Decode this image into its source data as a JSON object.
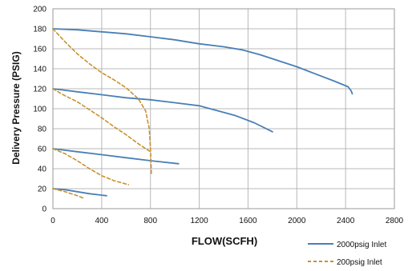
{
  "chart_data": {
    "type": "line",
    "xlabel": "FLOW(SCFH)",
    "ylabel": "Delivery Pressure (PSIG)",
    "xlim": [
      0,
      2800
    ],
    "ylim": [
      0,
      200
    ],
    "xticks": [
      "0",
      "400",
      "800",
      "1200",
      "1600",
      "2000",
      "2400",
      "2800"
    ],
    "yticks": [
      "0",
      "20",
      "40",
      "60",
      "80",
      "100",
      "120",
      "140",
      "160",
      "180",
      "200"
    ],
    "grid": true,
    "legend_position": "bottom-right",
    "series": [
      {
        "name": "2000psig Inlet",
        "color": "#4a7fb5",
        "style": "solid",
        "curves": [
          [
            [
              0,
              180
            ],
            [
              200,
              179
            ],
            [
              400,
              177
            ],
            [
              600,
              175
            ],
            [
              800,
              172
            ],
            [
              1000,
              169
            ],
            [
              1200,
              165
            ],
            [
              1400,
              162
            ],
            [
              1550,
              159
            ],
            [
              1700,
              154
            ],
            [
              1850,
              148
            ],
            [
              2000,
              142
            ],
            [
              2150,
              135
            ],
            [
              2300,
              128
            ],
            [
              2420,
              122
            ],
            [
              2445,
              118
            ],
            [
              2455,
              115
            ]
          ],
          [
            [
              0,
              120
            ],
            [
              200,
              117
            ],
            [
              400,
              114
            ],
            [
              600,
              111
            ],
            [
              800,
              109
            ],
            [
              1000,
              106
            ],
            [
              1200,
              103
            ],
            [
              1350,
              98
            ],
            [
              1500,
              93
            ],
            [
              1650,
              86
            ],
            [
              1800,
              77
            ]
          ],
          [
            [
              0,
              60
            ],
            [
              200,
              57
            ],
            [
              400,
              54
            ],
            [
              600,
              51
            ],
            [
              800,
              48
            ],
            [
              1030,
              45
            ]
          ],
          [
            [
              0,
              20
            ],
            [
              100,
              19
            ],
            [
              200,
              17
            ],
            [
              300,
              15
            ],
            [
              440,
              13
            ]
          ]
        ]
      },
      {
        "name": "200psig Inlet",
        "color": "#c8922e",
        "style": "dashed",
        "curves": [
          [
            [
              0,
              180
            ],
            [
              100,
              167
            ],
            [
              200,
              155
            ],
            [
              300,
              145
            ],
            [
              400,
              136
            ],
            [
              500,
              129
            ],
            [
              600,
              121
            ],
            [
              700,
              110
            ],
            [
              760,
              98
            ],
            [
              790,
              80
            ],
            [
              800,
              60
            ],
            [
              805,
              45
            ],
            [
              808,
              33
            ]
          ],
          [
            [
              0,
              120
            ],
            [
              100,
              113
            ],
            [
              200,
              107
            ],
            [
              300,
              99
            ],
            [
              400,
              91
            ],
            [
              500,
              82
            ],
            [
              600,
              74
            ],
            [
              700,
              65
            ],
            [
              800,
              57
            ]
          ],
          [
            [
              0,
              60
            ],
            [
              100,
              55
            ],
            [
              200,
              48
            ],
            [
              300,
              40
            ],
            [
              400,
              33
            ],
            [
              500,
              28
            ],
            [
              620,
              24
            ]
          ],
          [
            [
              0,
              20
            ],
            [
              100,
              17
            ],
            [
              200,
              13
            ],
            [
              260,
              10
            ]
          ]
        ]
      }
    ]
  }
}
